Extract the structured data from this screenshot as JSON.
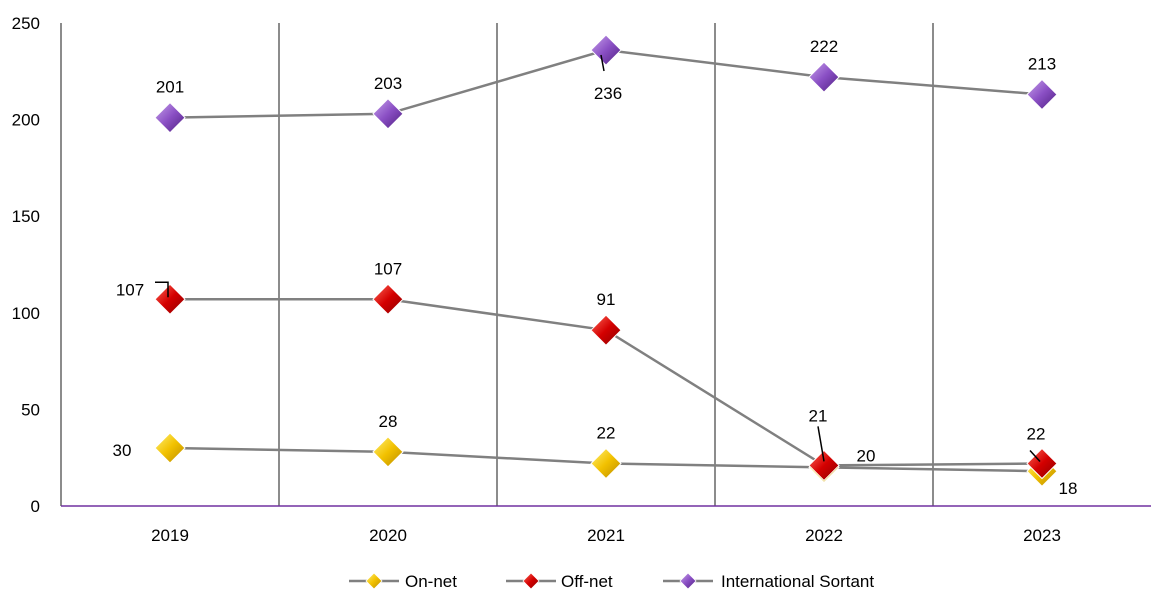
{
  "chart_data": {
    "type": "line",
    "title": "",
    "xlabel": "",
    "ylabel": "",
    "categories": [
      "2019",
      "2020",
      "2021",
      "2022",
      "2023"
    ],
    "ylim": [
      0,
      250
    ],
    "yticks": [
      0,
      50,
      100,
      150,
      200,
      250
    ],
    "grid": "vertical",
    "legend": "bottom",
    "series": [
      {
        "name": "On-net",
        "values": [
          30,
          28,
          22,
          20,
          18
        ],
        "color": "#F2C100",
        "marker": "diamond"
      },
      {
        "name": "Off-net",
        "values": [
          107,
          107,
          91,
          21,
          22
        ],
        "color": "#D40000",
        "marker": "diamond"
      },
      {
        "name": "International Sortant",
        "values": [
          201,
          203,
          236,
          222,
          213
        ],
        "color": "#7D3FB0",
        "marker": "diamond"
      }
    ],
    "line_color": "#808080",
    "axis_color": "#7030A0"
  }
}
